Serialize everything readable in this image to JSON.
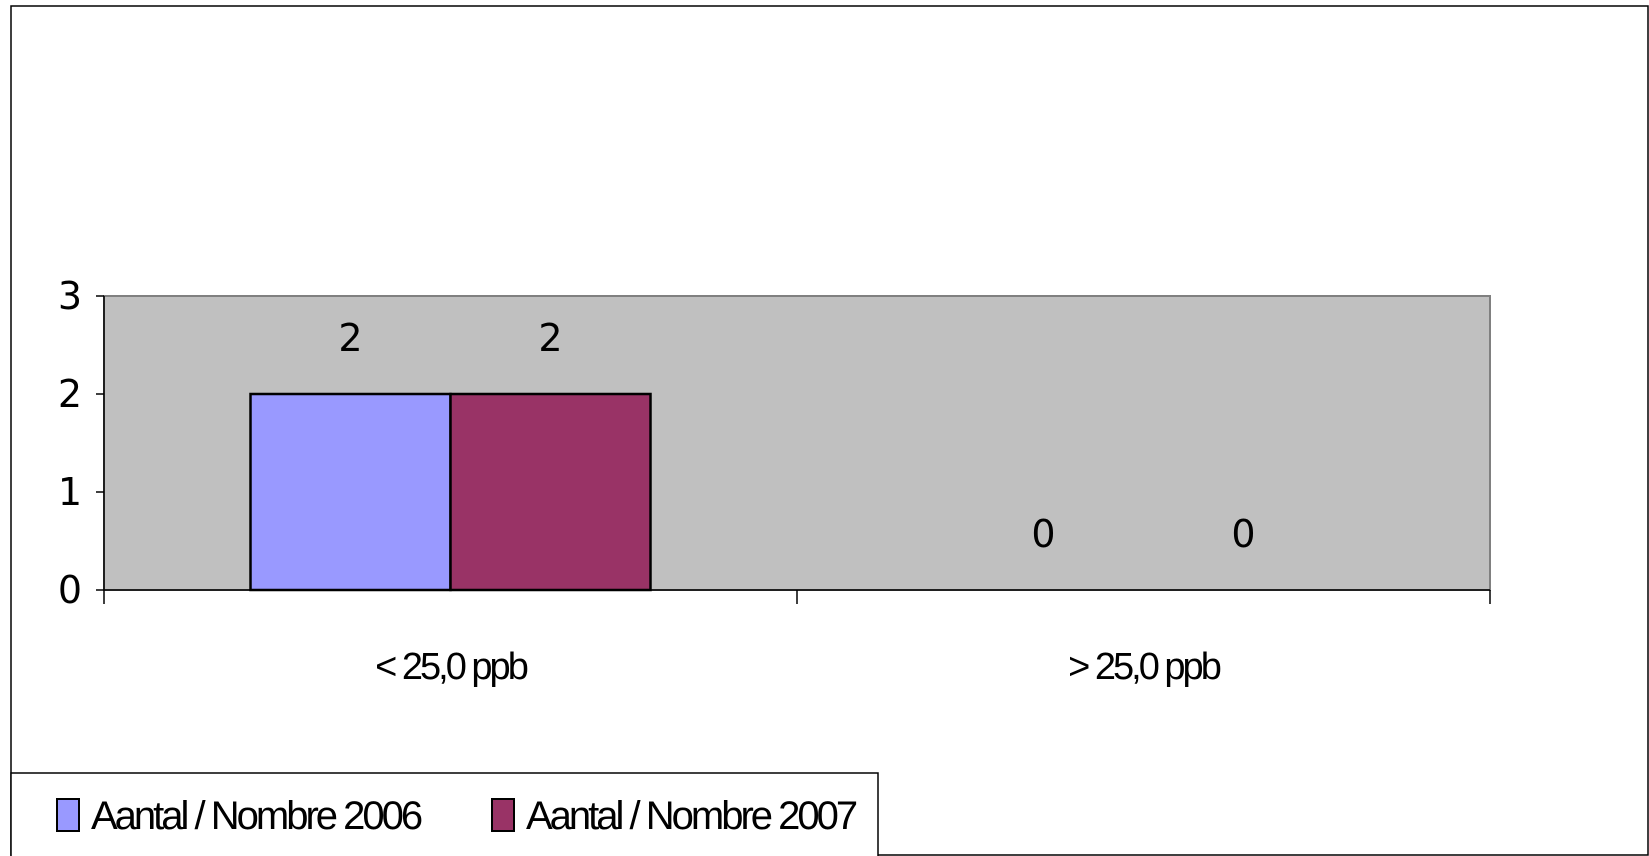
{
  "chart_data": {
    "type": "bar",
    "categories": [
      "< 25,0 ppb",
      "> 25,0 ppb"
    ],
    "series": [
      {
        "name": "Aantal / Nombre 2006",
        "values": [
          2,
          0
        ],
        "color": "#9999ff"
      },
      {
        "name": "Aantal / Nombre 2007",
        "values": [
          2,
          0
        ],
        "color": "#993366"
      }
    ],
    "y_ticks": [
      "0",
      "1",
      "2",
      "3"
    ],
    "ylim": [
      0,
      3
    ],
    "data_labels": [
      [
        "2",
        "0"
      ],
      [
        "2",
        "0"
      ]
    ],
    "plot_background": "#c0c0c0",
    "legend_position": "bottom-left",
    "grid": false
  }
}
